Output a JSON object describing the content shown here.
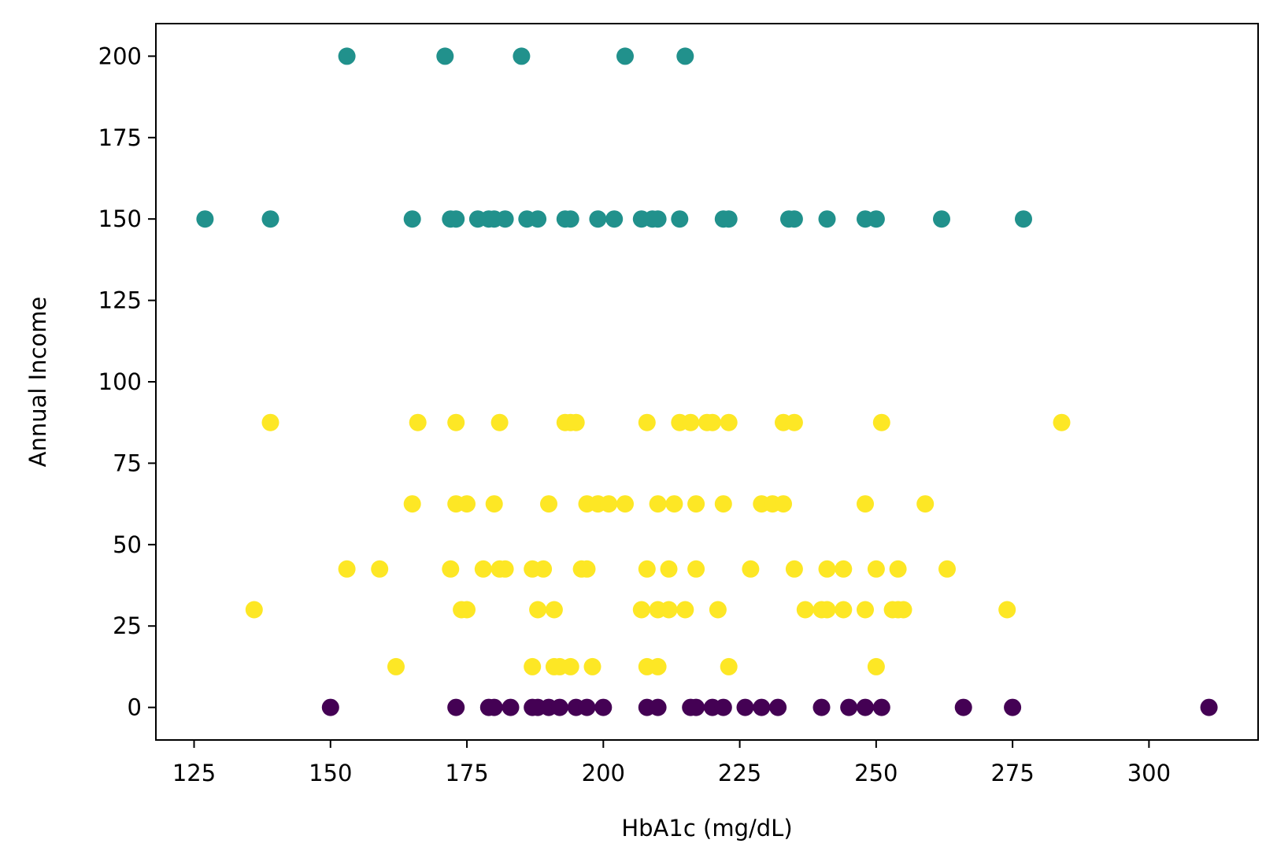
{
  "chart_data": {
    "type": "scatter",
    "title": "",
    "xlabel": "HbA1c (mg/dL)",
    "ylabel": "Annual Income",
    "xlim": [
      118,
      320
    ],
    "ylim": [
      -10,
      210
    ],
    "xticks": [
      125,
      150,
      175,
      200,
      225,
      250,
      275,
      300
    ],
    "yticks": [
      0,
      25,
      50,
      75,
      100,
      125,
      150,
      175,
      200
    ],
    "xtick_labels": [
      "125",
      "150",
      "175",
      "200",
      "225",
      "250",
      "275",
      "300"
    ],
    "ytick_labels": [
      "0",
      "25",
      "50",
      "75",
      "100",
      "125",
      "150",
      "175",
      "200"
    ],
    "grid": false,
    "legend": "none",
    "colors": {
      "teal": "#21918c",
      "yellow": "#fde725",
      "purple": "#440154"
    },
    "series": [
      {
        "color": "#21918c",
        "points": [
          [
            153,
            200
          ],
          [
            171,
            200
          ],
          [
            185,
            200
          ],
          [
            204,
            200
          ],
          [
            215,
            200
          ],
          [
            127,
            150
          ],
          [
            139,
            150
          ],
          [
            165,
            150
          ],
          [
            172,
            150
          ],
          [
            173,
            150
          ],
          [
            177,
            150
          ],
          [
            179,
            150
          ],
          [
            180,
            150
          ],
          [
            182,
            150
          ],
          [
            186,
            150
          ],
          [
            188,
            150
          ],
          [
            193,
            150
          ],
          [
            194,
            150
          ],
          [
            199,
            150
          ],
          [
            202,
            150
          ],
          [
            207,
            150
          ],
          [
            209,
            150
          ],
          [
            210,
            150
          ],
          [
            214,
            150
          ],
          [
            222,
            150
          ],
          [
            223,
            150
          ],
          [
            234,
            150
          ],
          [
            235,
            150
          ],
          [
            241,
            150
          ],
          [
            248,
            150
          ],
          [
            250,
            150
          ],
          [
            262,
            150
          ],
          [
            277,
            150
          ]
        ]
      },
      {
        "color": "#fde725",
        "points": [
          [
            139,
            87.5
          ],
          [
            166,
            87.5
          ],
          [
            173,
            87.5
          ],
          [
            181,
            87.5
          ],
          [
            193,
            87.5
          ],
          [
            194,
            87.5
          ],
          [
            195,
            87.5
          ],
          [
            208,
            87.5
          ],
          [
            214,
            87.5
          ],
          [
            216,
            87.5
          ],
          [
            219,
            87.5
          ],
          [
            220,
            87.5
          ],
          [
            223,
            87.5
          ],
          [
            233,
            87.5
          ],
          [
            235,
            87.5
          ],
          [
            251,
            87.5
          ],
          [
            284,
            87.5
          ],
          [
            165,
            62.5
          ],
          [
            173,
            62.5
          ],
          [
            175,
            62.5
          ],
          [
            180,
            62.5
          ],
          [
            190,
            62.5
          ],
          [
            197,
            62.5
          ],
          [
            199,
            62.5
          ],
          [
            201,
            62.5
          ],
          [
            204,
            62.5
          ],
          [
            210,
            62.5
          ],
          [
            213,
            62.5
          ],
          [
            217,
            62.5
          ],
          [
            222,
            62.5
          ],
          [
            229,
            62.5
          ],
          [
            231,
            62.5
          ],
          [
            233,
            62.5
          ],
          [
            248,
            62.5
          ],
          [
            259,
            62.5
          ],
          [
            153,
            42.5
          ],
          [
            159,
            42.5
          ],
          [
            172,
            42.5
          ],
          [
            178,
            42.5
          ],
          [
            181,
            42.5
          ],
          [
            182,
            42.5
          ],
          [
            187,
            42.5
          ],
          [
            189,
            42.5
          ],
          [
            196,
            42.5
          ],
          [
            197,
            42.5
          ],
          [
            208,
            42.5
          ],
          [
            212,
            42.5
          ],
          [
            217,
            42.5
          ],
          [
            227,
            42.5
          ],
          [
            235,
            42.5
          ],
          [
            241,
            42.5
          ],
          [
            244,
            42.5
          ],
          [
            250,
            42.5
          ],
          [
            254,
            42.5
          ],
          [
            263,
            42.5
          ],
          [
            136,
            30
          ],
          [
            174,
            30
          ],
          [
            175,
            30
          ],
          [
            188,
            30
          ],
          [
            191,
            30
          ],
          [
            207,
            30
          ],
          [
            210,
            30
          ],
          [
            212,
            30
          ],
          [
            215,
            30
          ],
          [
            221,
            30
          ],
          [
            237,
            30
          ],
          [
            240,
            30
          ],
          [
            241,
            30
          ],
          [
            244,
            30
          ],
          [
            248,
            30
          ],
          [
            253,
            30
          ],
          [
            254,
            30
          ],
          [
            255,
            30
          ],
          [
            274,
            30
          ],
          [
            162,
            12.5
          ],
          [
            187,
            12.5
          ],
          [
            191,
            12.5
          ],
          [
            192,
            12.5
          ],
          [
            194,
            12.5
          ],
          [
            198,
            12.5
          ],
          [
            208,
            12.5
          ],
          [
            210,
            12.5
          ],
          [
            223,
            12.5
          ],
          [
            250,
            12.5
          ]
        ]
      },
      {
        "color": "#440154",
        "points": [
          [
            150,
            0
          ],
          [
            173,
            0
          ],
          [
            179,
            0
          ],
          [
            180,
            0
          ],
          [
            183,
            0
          ],
          [
            187,
            0
          ],
          [
            188,
            0
          ],
          [
            190,
            0
          ],
          [
            192,
            0
          ],
          [
            195,
            0
          ],
          [
            197,
            0
          ],
          [
            200,
            0
          ],
          [
            208,
            0
          ],
          [
            210,
            0
          ],
          [
            216,
            0
          ],
          [
            217,
            0
          ],
          [
            220,
            0
          ],
          [
            222,
            0
          ],
          [
            226,
            0
          ],
          [
            229,
            0
          ],
          [
            232,
            0
          ],
          [
            240,
            0
          ],
          [
            245,
            0
          ],
          [
            248,
            0
          ],
          [
            251,
            0
          ],
          [
            266,
            0
          ],
          [
            275,
            0
          ],
          [
            311,
            0
          ]
        ]
      }
    ]
  }
}
